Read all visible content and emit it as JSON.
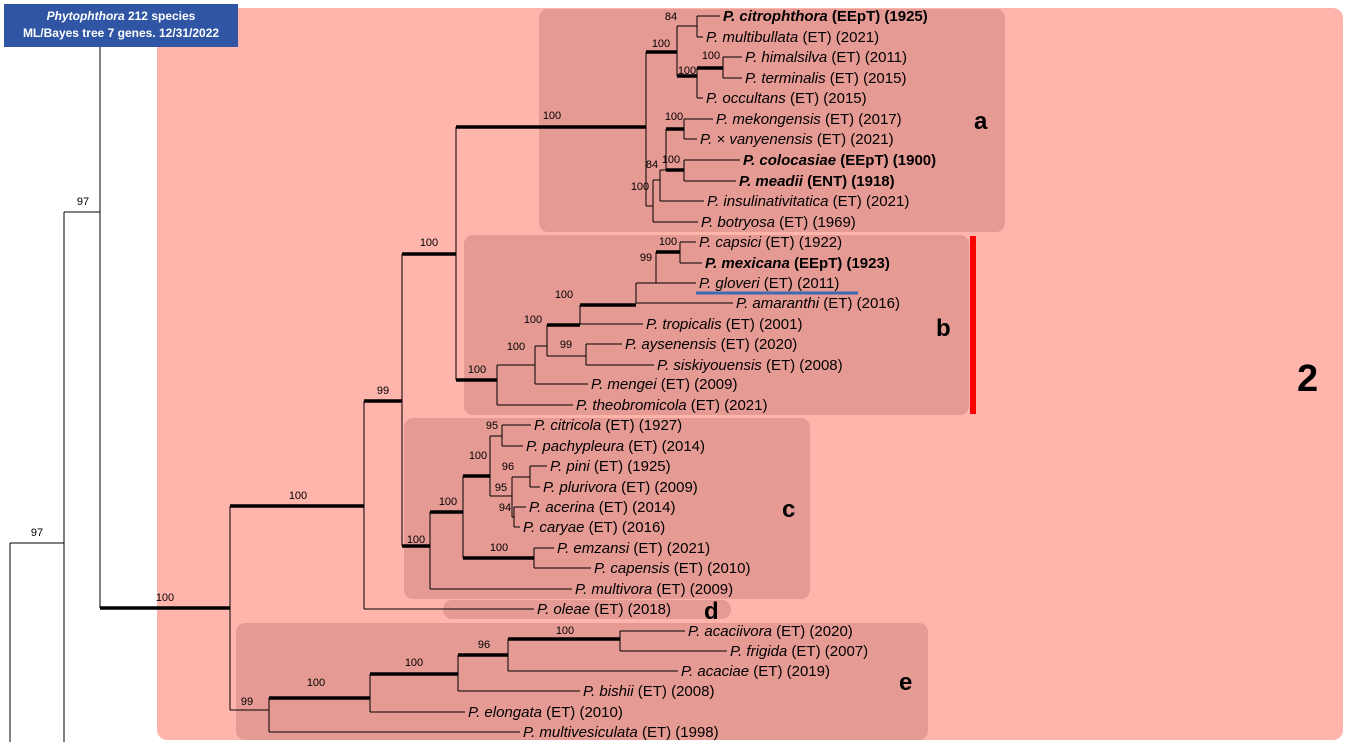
{
  "header": {
    "genus": "Phytophthora",
    "line1_rest": " 212 species",
    "line2": "ML/Bayes tree 7 genes. 12/31/2022"
  },
  "group_label": "2",
  "clade_labels": {
    "a": "a",
    "b": "b",
    "c": "c",
    "d": "d",
    "e": "e"
  },
  "colors": {
    "group_bg": "#ffb4ac",
    "clade_bg": "#e69a94",
    "branch": "#000000",
    "red_bar": "#ff0000",
    "underline": "#3c6ab4",
    "title_bg": "#2f55a4"
  },
  "tips": [
    {
      "id": "citrophthora",
      "genus": "P.",
      "epithet": "citrophthora",
      "rest": " (EEpT) (1925)",
      "bold": true
    },
    {
      "id": "multibullata",
      "genus": "P.",
      "epithet": "multibullata",
      "rest": " (ET) (2021)"
    },
    {
      "id": "himalsilva",
      "genus": "P.",
      "epithet": "himalsilva",
      "rest": " (ET) (2011)"
    },
    {
      "id": "terminalis",
      "genus": "P.",
      "epithet": "terminalis",
      "rest": " (ET) (2015)"
    },
    {
      "id": "occultans",
      "genus": "P.",
      "epithet": "occultans",
      "rest": " (ET) (2015)"
    },
    {
      "id": "mekongensis",
      "genus": "P.",
      "epithet": "mekongensis",
      "rest": " (ET) (2017)"
    },
    {
      "id": "vanyenensis",
      "genus": "P.",
      "epithet": "× vanyenensis",
      "rest": " (ET) (2021)"
    },
    {
      "id": "colocasiae",
      "genus": "P.",
      "epithet": "colocasiae",
      "rest": " (EEpT) (1900)",
      "bold": true
    },
    {
      "id": "meadii",
      "genus": "P.",
      "epithet": "meadii",
      "rest": " (ENT) (1918)",
      "bold": true
    },
    {
      "id": "insulinativitatica",
      "genus": "P.",
      "epithet": "insulinativitatica",
      "rest": " (ET) (2021)"
    },
    {
      "id": "botryosa",
      "genus": "P.",
      "epithet": "botryosa",
      "rest": " (ET) (1969)"
    },
    {
      "id": "capsici",
      "genus": "P.",
      "epithet": "capsici",
      "rest": " (ET) (1922)"
    },
    {
      "id": "mexicana",
      "genus": "P.",
      "epithet": "mexicana",
      "rest": " (EEpT) (1923)",
      "bold": true
    },
    {
      "id": "gloveri",
      "genus": "P.",
      "epithet": "gloveri",
      "rest": " (ET) (2011)",
      "underline": true
    },
    {
      "id": "amaranthi",
      "genus": "P.",
      "epithet": "amaranthi",
      "rest": " (ET) (2016)"
    },
    {
      "id": "tropicalis",
      "genus": "P.",
      "epithet": "tropicalis",
      "rest": " (ET) (2001)"
    },
    {
      "id": "aysenensis",
      "genus": "P.",
      "epithet": "aysenensis",
      "rest": " (ET) (2020)"
    },
    {
      "id": "siskiyouensis",
      "genus": "P.",
      "epithet": "siskiyouensis",
      "rest": " (ET) (2008)"
    },
    {
      "id": "mengei",
      "genus": "P.",
      "epithet": "mengei",
      "rest": " (ET) (2009)"
    },
    {
      "id": "theobromicola",
      "genus": "P.",
      "epithet": "theobromicola",
      "rest": " (ET) (2021)"
    },
    {
      "id": "citricola",
      "genus": "P.",
      "epithet": "citricola",
      "rest": " (ET) (1927)"
    },
    {
      "id": "pachypleura",
      "genus": "P.",
      "epithet": "pachypleura",
      "rest": " (ET) (2014)"
    },
    {
      "id": "pini",
      "genus": "P.",
      "epithet": "pini",
      "rest": " (ET) (1925)"
    },
    {
      "id": "plurivora",
      "genus": "P.",
      "epithet": "plurivora",
      "rest": " (ET) (2009)"
    },
    {
      "id": "acerina",
      "genus": "P.",
      "epithet": "acerina",
      "rest": " (ET) (2014)"
    },
    {
      "id": "caryae",
      "genus": "P.",
      "epithet": "caryae",
      "rest": " (ET) (2016)"
    },
    {
      "id": "emzansi",
      "genus": "P.",
      "epithet": "emzansi",
      "rest": " (ET) (2021)"
    },
    {
      "id": "capensis",
      "genus": "P.",
      "epithet": "capensis",
      "rest": " (ET) (2010)"
    },
    {
      "id": "multivora",
      "genus": "P.",
      "epithet": "multivora",
      "rest": " (ET) (2009)"
    },
    {
      "id": "oleae",
      "genus": "P.",
      "epithet": "oleae",
      "rest": " (ET) (2018)"
    },
    {
      "id": "acaciivora",
      "genus": "P.",
      "epithet": "acaciivora",
      "rest": " (ET) (2020)"
    },
    {
      "id": "frigida",
      "genus": "P.",
      "epithet": "frigida",
      "rest": " (ET) (2007)"
    },
    {
      "id": "acaciae",
      "genus": "P.",
      "epithet": "acaciae",
      "rest": " (ET) (2019)"
    },
    {
      "id": "bishii",
      "genus": "P.",
      "epithet": "bishii",
      "rest": " (ET) (2008)"
    },
    {
      "id": "elongata",
      "genus": "P.",
      "epithet": "elongata",
      "rest": " (ET) (2010)"
    },
    {
      "id": "multivesiculata",
      "genus": "P.",
      "epithet": "multivesiculata",
      "rest": " (ET) (1998)"
    }
  ],
  "support_values": {
    "root_outer": "97",
    "root_inner": "97",
    "clade2": "100",
    "abcd": "100",
    "e": "99",
    "e_inner": "100",
    "e_sub": "100",
    "e_sub2": "96",
    "acaciivora_frigida": "100",
    "abc": "99",
    "ab": "100",
    "a": "100",
    "a1": "100",
    "a1_top": "84",
    "a1_him_ter_occ": "100",
    "him_ter": "100",
    "a2_colo_meadii": "100",
    "a2_mek": "100",
    "a2_84": "84",
    "a2_insul": "100",
    "b": "100",
    "b1": "100",
    "b2": "100",
    "b3": "100",
    "b4": "99",
    "b5": "100",
    "b_ays": "99",
    "c": "100",
    "c1": "100",
    "c2": "100",
    "c_cit": "95",
    "c_pini": "96",
    "c_pini_plur": "95",
    "c_acer": "94",
    "c_emz": "100"
  }
}
